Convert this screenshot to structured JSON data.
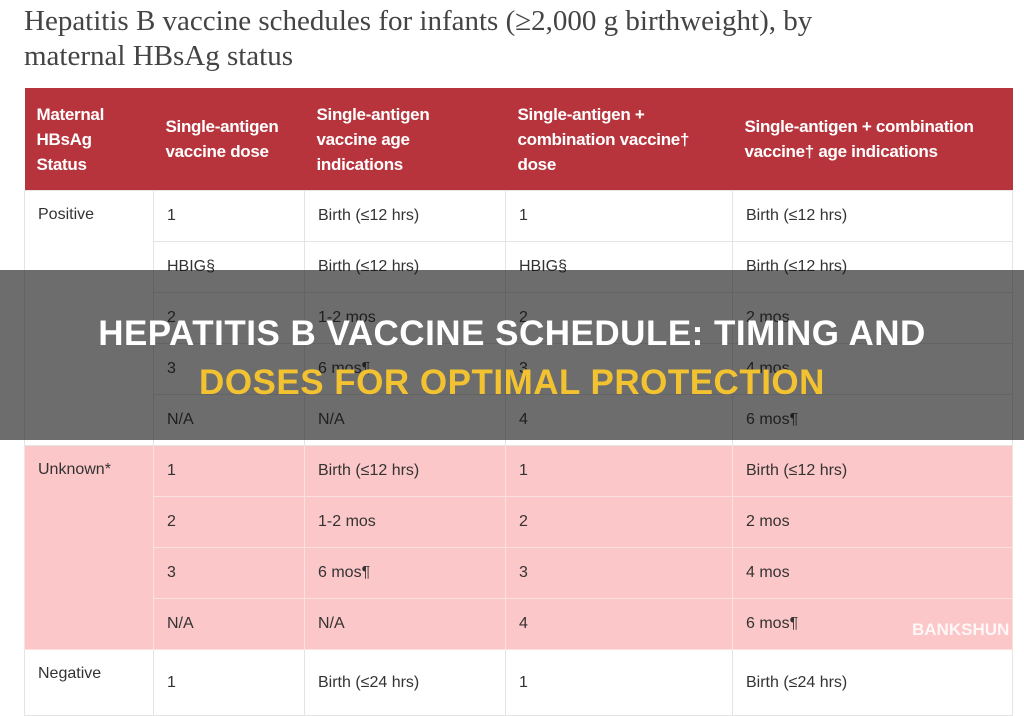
{
  "header": {
    "title_lines": [
      "Hepatitis B vaccine schedules for infants (≥2,000 g birthweight), by",
      "maternal HBsAg status"
    ]
  },
  "table": {
    "headers": [
      "Maternal HBsAg Status",
      "Single-antigen vaccine dose",
      "Single-antigen vaccine age indications",
      "Single-antigen + combination vaccine† dose",
      "Single-antigen + combination vaccine† age indications"
    ],
    "groups": [
      {
        "status": "Positive",
        "rows": [
          [
            "1",
            "Birth (≤12 hrs)",
            "1",
            "Birth (≤12 hrs)"
          ],
          [
            "HBIG§",
            "Birth (≤12 hrs)",
            "HBIG§",
            "Birth (≤12 hrs)"
          ],
          [
            "2",
            "1-2 mos",
            "2",
            "2 mos"
          ],
          [
            "3",
            "6 mos¶",
            "3",
            "4 mos"
          ],
          [
            "N/A",
            "N/A",
            "4",
            "6 mos¶"
          ]
        ]
      },
      {
        "status": "Unknown*",
        "rows": [
          [
            "1",
            "Birth (≤12 hrs)",
            "1",
            "Birth (≤12 hrs)"
          ],
          [
            "2",
            "1-2 mos",
            "2",
            "2 mos"
          ],
          [
            "3",
            "6 mos¶",
            "3",
            "4 mos"
          ],
          [
            "N/A",
            "N/A",
            "4",
            "6 mos¶"
          ]
        ]
      },
      {
        "status": "Negative",
        "rows": [
          [
            "1",
            "Birth (≤24 hrs)",
            "1",
            "Birth (≤24 hrs)"
          ]
        ]
      }
    ]
  },
  "banner": {
    "line1": "HEPATITIS B VACCINE SCHEDULE: TIMING AND",
    "line2": "DOSES FOR OPTIMAL PROTECTION"
  },
  "watermark": "BANKSHUN"
}
